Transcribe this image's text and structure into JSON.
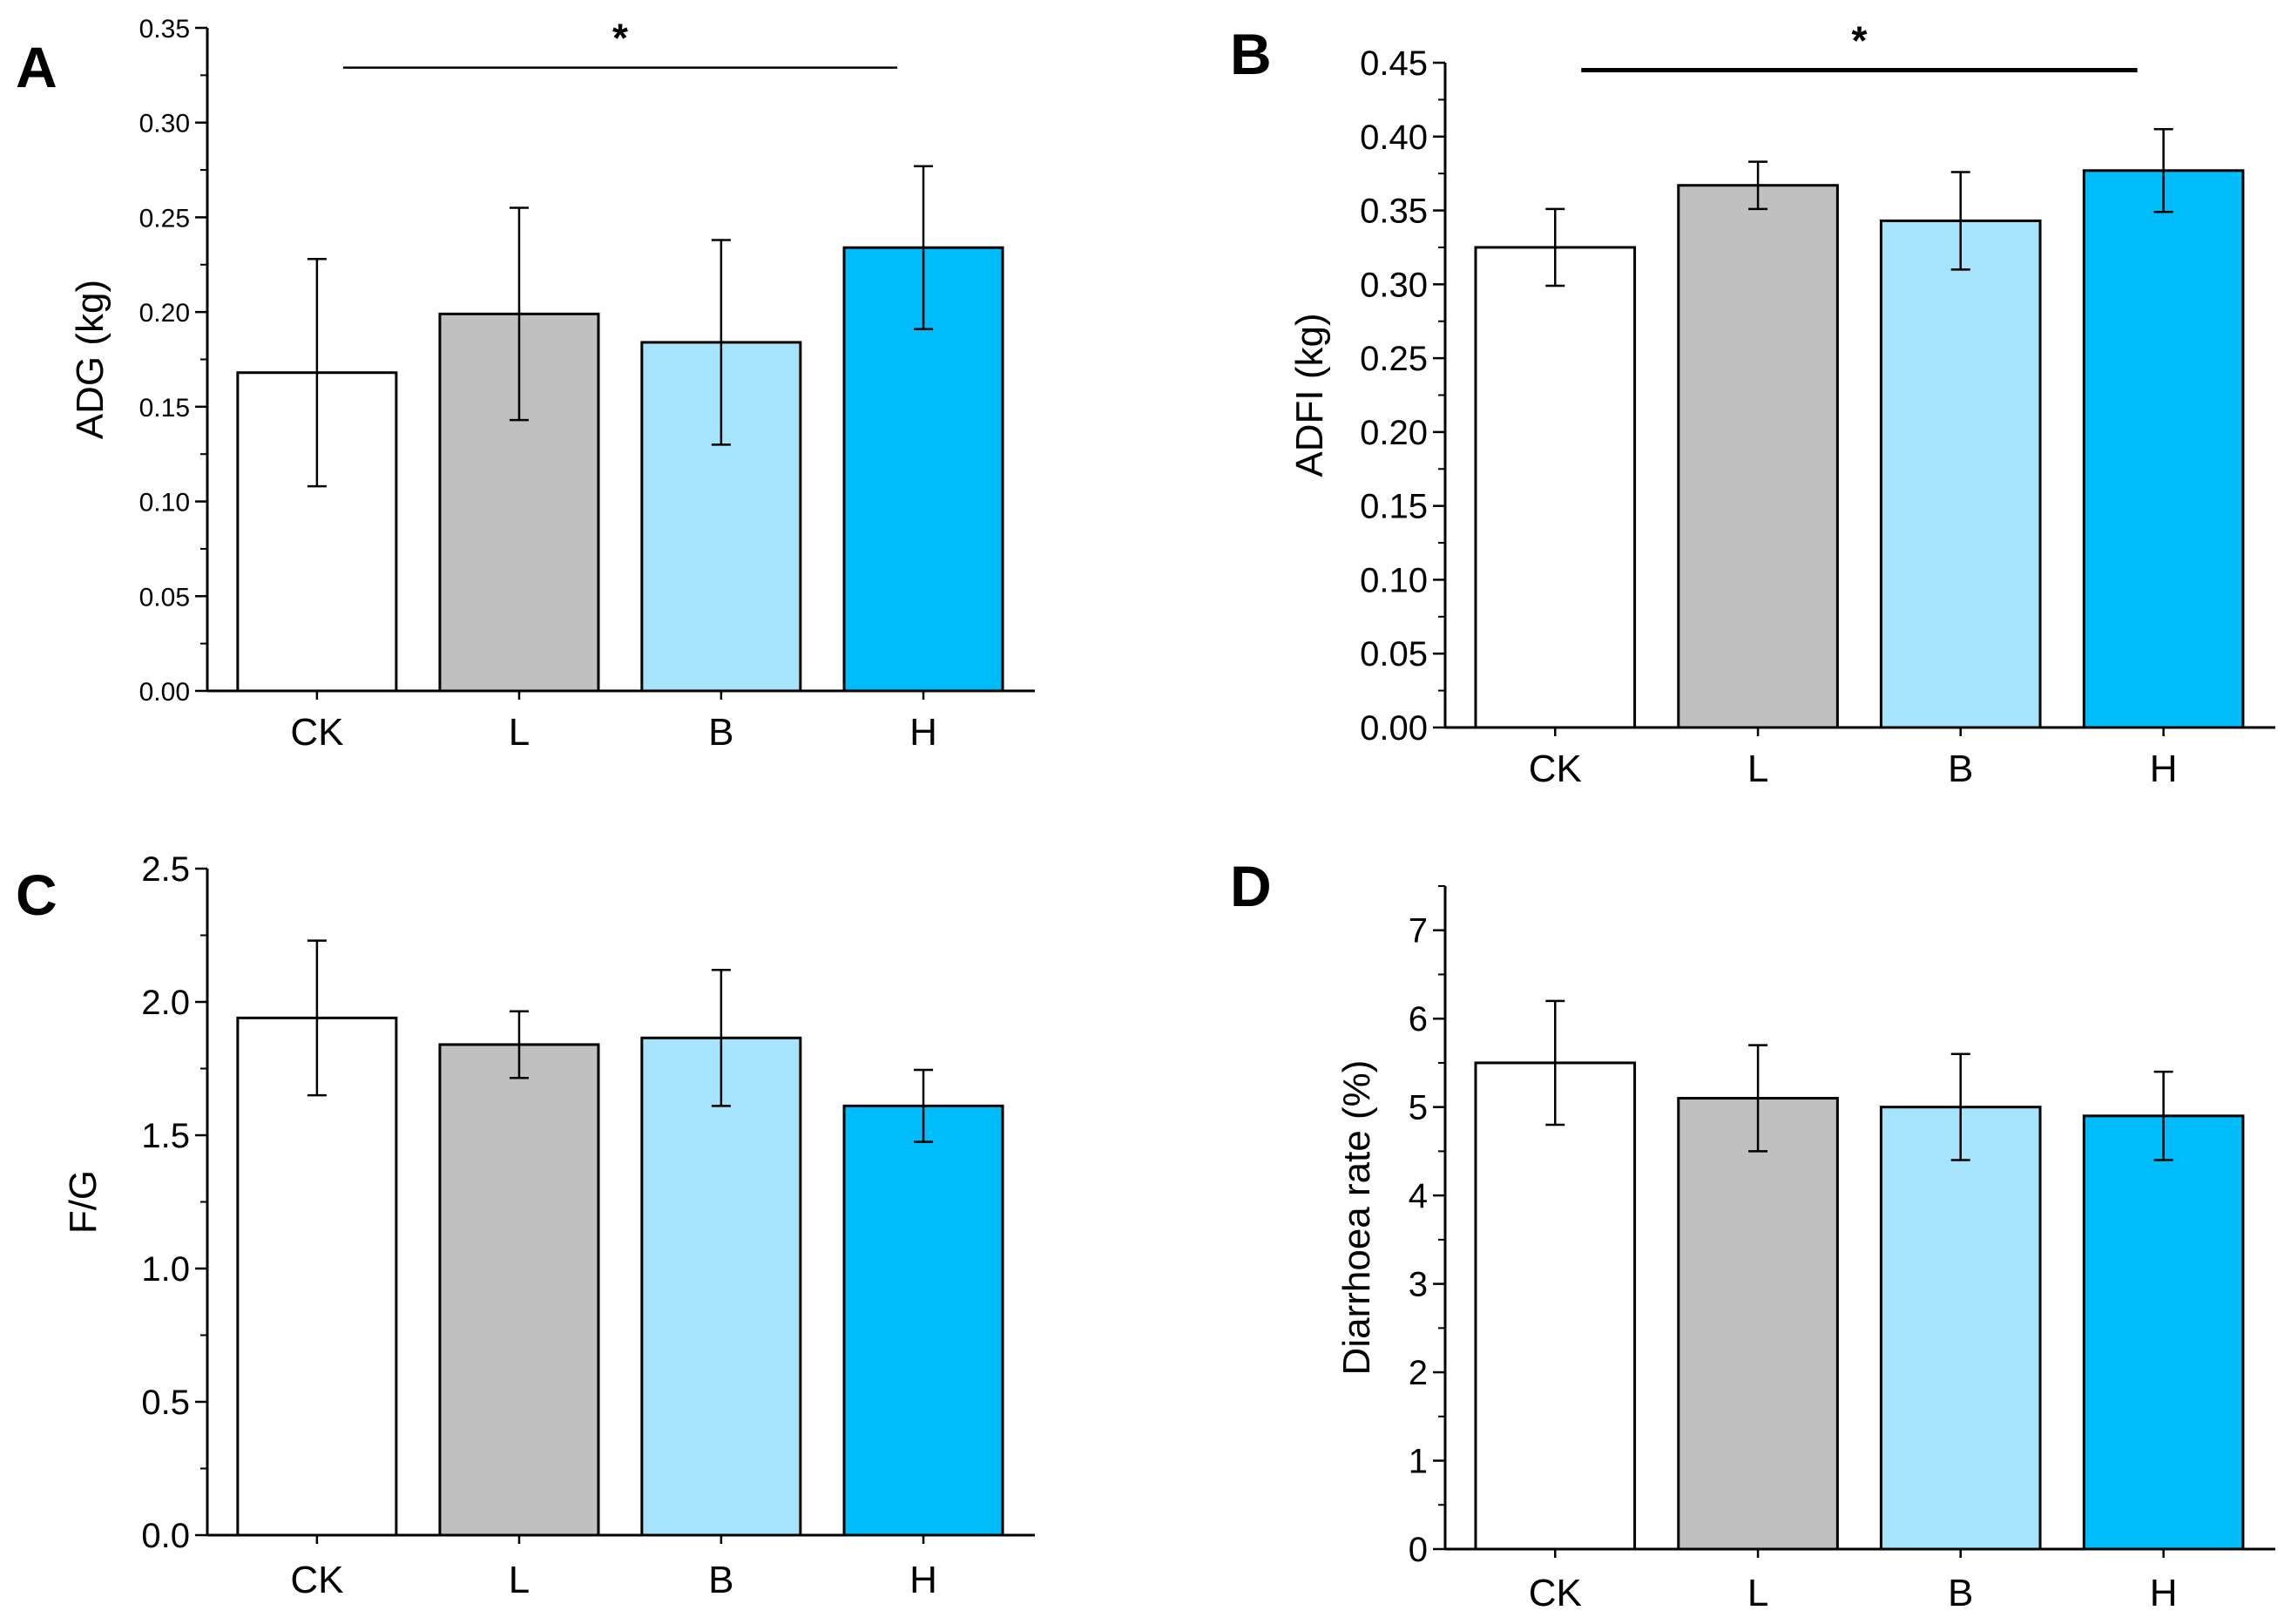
{
  "colors": {
    "CK": "#ffffff",
    "L": "#c0c0c0",
    "B": "#a6e4fb",
    "H": "#00bcfb",
    "stroke": "#000000"
  },
  "chart_data": [
    {
      "id": "A",
      "type": "bar",
      "panel_label": "A",
      "categories": [
        "CK",
        "L",
        "B",
        "H"
      ],
      "values": [
        0.168,
        0.199,
        0.184,
        0.234
      ],
      "errors": [
        0.06,
        0.056,
        0.054,
        0.043
      ],
      "ylabel": "ADG (kg)",
      "xlabel": "",
      "ylim": [
        0,
        0.35
      ],
      "yticks": [
        "0.00",
        "0.05",
        "0.10",
        "0.15",
        "0.20",
        "0.25",
        "0.30",
        "0.35"
      ],
      "significance": {
        "from": "CK",
        "to": "H",
        "y": 0.329,
        "label": "*"
      }
    },
    {
      "id": "B",
      "type": "bar",
      "panel_label": "B",
      "categories": [
        "CK",
        "L",
        "B",
        "H"
      ],
      "values": [
        0.325,
        0.367,
        0.343,
        0.377
      ],
      "errors": [
        0.026,
        0.016,
        0.033,
        0.028
      ],
      "ylabel": "ADFI (kg)",
      "xlabel": "",
      "ylim": [
        0,
        0.45
      ],
      "yticks": [
        "0.00",
        "0.05",
        "0.10",
        "0.15",
        "0.20",
        "0.25",
        "0.30",
        "0.35",
        "0.40",
        "0.45"
      ],
      "significance": {
        "from": "CK",
        "to": "H",
        "y": 0.445,
        "label": "*"
      }
    },
    {
      "id": "C",
      "type": "bar",
      "panel_label": "C",
      "categories": [
        "CK",
        "L",
        "B",
        "H"
      ],
      "values": [
        1.94,
        1.84,
        1.865,
        1.61
      ],
      "errors": [
        0.29,
        0.125,
        0.255,
        0.135
      ],
      "ylabel": "F/G",
      "xlabel": "",
      "ylim": [
        0,
        2.5
      ],
      "yticks": [
        "0.0",
        "0.5",
        "1.0",
        "1.5",
        "2.0",
        "2.5"
      ]
    },
    {
      "id": "D",
      "type": "bar",
      "panel_label": "D",
      "categories": [
        "CK",
        "L",
        "B",
        "H"
      ],
      "values": [
        5.5,
        5.1,
        5.0,
        4.9
      ],
      "errors": [
        0.7,
        0.6,
        0.6,
        0.5
      ],
      "ylabel": "Diarrhoea rate (%)",
      "xlabel": "",
      "ylim": [
        0,
        7.5
      ],
      "yticks": [
        "0",
        "1",
        "2",
        "3",
        "4",
        "5",
        "6",
        "7"
      ]
    }
  ]
}
